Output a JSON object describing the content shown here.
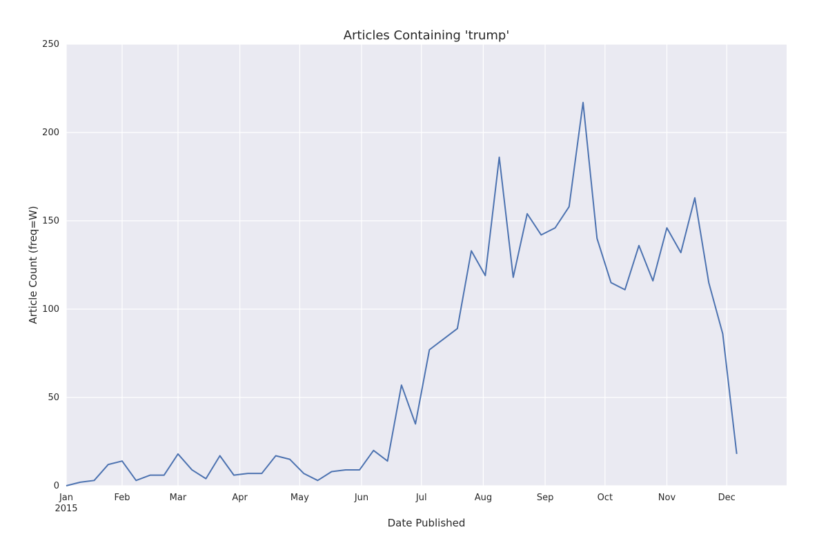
{
  "chart_data": {
    "type": "line",
    "title": "Articles Containing 'trump'",
    "xlabel": "Date Published",
    "ylabel": "Article Count (freq=W)",
    "x_range": [
      "2015-01-04",
      "2015-12-31"
    ],
    "ylim": [
      0,
      250
    ],
    "yticks": [
      0,
      50,
      100,
      150,
      200,
      250
    ],
    "xticks": [
      {
        "date": "2015-01-04",
        "label": "Jan",
        "sublabel": "2015"
      },
      {
        "date": "2015-02-01",
        "label": "Feb"
      },
      {
        "date": "2015-03-01",
        "label": "Mar"
      },
      {
        "date": "2015-04-01",
        "label": "Apr"
      },
      {
        "date": "2015-05-01",
        "label": "May"
      },
      {
        "date": "2015-06-01",
        "label": "Jun"
      },
      {
        "date": "2015-07-01",
        "label": "Jul"
      },
      {
        "date": "2015-08-01",
        "label": "Aug"
      },
      {
        "date": "2015-09-01",
        "label": "Sep"
      },
      {
        "date": "2015-10-01",
        "label": "Oct"
      },
      {
        "date": "2015-11-01",
        "label": "Nov"
      },
      {
        "date": "2015-12-01",
        "label": "Dec"
      }
    ],
    "grid": true,
    "series": [
      {
        "color": "#4c72b0",
        "x": [
          "2015-01-04",
          "2015-01-11",
          "2015-01-18",
          "2015-01-25",
          "2015-02-01",
          "2015-02-08",
          "2015-02-15",
          "2015-02-22",
          "2015-03-01",
          "2015-03-08",
          "2015-03-15",
          "2015-03-22",
          "2015-03-29",
          "2015-04-05",
          "2015-04-12",
          "2015-04-19",
          "2015-04-26",
          "2015-05-03",
          "2015-05-10",
          "2015-05-17",
          "2015-05-24",
          "2015-05-31",
          "2015-06-07",
          "2015-06-14",
          "2015-06-21",
          "2015-06-28",
          "2015-07-05",
          "2015-07-12",
          "2015-07-19",
          "2015-07-26",
          "2015-08-02",
          "2015-08-09",
          "2015-08-16",
          "2015-08-23",
          "2015-08-30",
          "2015-09-06",
          "2015-09-13",
          "2015-09-20",
          "2015-09-27",
          "2015-10-04",
          "2015-10-11",
          "2015-10-18",
          "2015-10-25",
          "2015-11-01",
          "2015-11-08",
          "2015-11-15",
          "2015-11-22",
          "2015-11-29",
          "2015-12-06"
        ],
        "values": [
          0,
          2,
          3,
          12,
          14,
          3,
          6,
          6,
          18,
          9,
          4,
          17,
          6,
          7,
          7,
          17,
          15,
          7,
          3,
          8,
          9,
          9,
          20,
          14,
          57,
          35,
          77,
          83,
          89,
          133,
          119,
          186,
          118,
          154,
          142,
          146,
          158,
          217,
          140,
          115,
          111,
          136,
          116,
          146,
          132,
          163,
          115,
          86,
          18
        ]
      }
    ]
  }
}
